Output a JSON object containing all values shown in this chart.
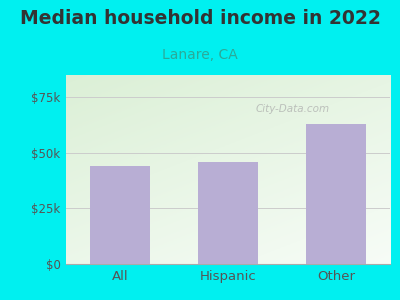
{
  "title": "Median household income in 2022",
  "subtitle": "Lanare, CA",
  "categories": [
    "All",
    "Hispanic",
    "Other"
  ],
  "values": [
    44000,
    46000,
    63000
  ],
  "bar_color": "#b8aed4",
  "background_color": "#00f0f0",
  "chart_bg_color_tl": [
    0.86,
    0.94,
    0.84,
    1.0
  ],
  "chart_bg_color_br": [
    0.97,
    0.99,
    0.97,
    1.0
  ],
  "subtitle_color": "#2aaa99",
  "title_color": "#333333",
  "tick_color": "#555555",
  "yticks": [
    0,
    25000,
    50000,
    75000
  ],
  "ytick_labels": [
    "$0",
    "$25k",
    "$50k",
    "$75k"
  ],
  "ylim": [
    0,
    85000
  ],
  "watermark": "City-Data.com",
  "title_fontsize": 13.5,
  "subtitle_fontsize": 10
}
